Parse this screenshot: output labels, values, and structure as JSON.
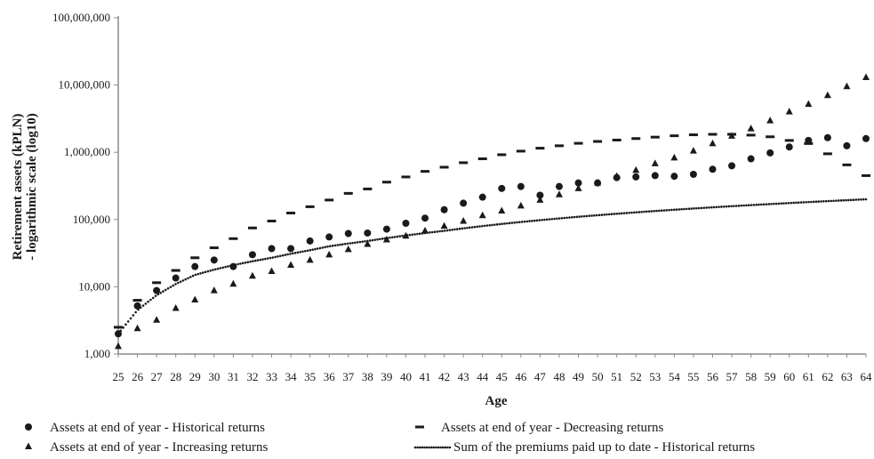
{
  "chart_data": {
    "type": "scatter",
    "xlabel": "Age",
    "ylabel": "Retirement assets (kPLN)",
    "ylabel_line2": "- logarithmic scale (log10)",
    "yscale": "log10",
    "ylim": [
      1000,
      100000000
    ],
    "y_ticks": [
      "1,000",
      "10,000",
      "100,000",
      "1,000,000",
      "10,000,000",
      "100,000,000"
    ],
    "x": [
      25,
      26,
      27,
      28,
      29,
      30,
      31,
      32,
      33,
      34,
      35,
      36,
      37,
      38,
      39,
      40,
      41,
      42,
      43,
      44,
      45,
      46,
      47,
      48,
      49,
      50,
      51,
      52,
      53,
      54,
      55,
      56,
      57,
      58,
      59,
      60,
      61,
      62,
      63,
      64
    ],
    "grid": false,
    "legend_position": "bottom",
    "series": [
      {
        "name": "Assets at end of year - Historical returns",
        "marker": "circle",
        "values": [
          2000,
          5200,
          8800,
          13500,
          20000,
          25000,
          20000,
          30000,
          37000,
          37000,
          48000,
          55000,
          62000,
          63000,
          72000,
          88000,
          105000,
          140000,
          175000,
          215000,
          290000,
          310000,
          230000,
          310000,
          350000,
          350000,
          420000,
          430000,
          450000,
          440000,
          470000,
          560000,
          630000,
          800000,
          980000,
          1200000,
          1500000,
          1650000,
          1250000,
          1600000
        ]
      },
      {
        "name": "Assets at end of year - Decreasing returns",
        "marker": "dash",
        "values": [
          2500,
          6300,
          11500,
          17500,
          27000,
          38000,
          52000,
          75000,
          95000,
          125000,
          155000,
          195000,
          245000,
          285000,
          360000,
          430000,
          520000,
          600000,
          700000,
          800000,
          920000,
          1040000,
          1150000,
          1250000,
          1360000,
          1450000,
          1520000,
          1600000,
          1680000,
          1760000,
          1820000,
          1850000,
          1850000,
          1800000,
          1700000,
          1500000,
          1350000,
          950000,
          650000,
          450000
        ]
      },
      {
        "name": "Assets at end of year - Increasing returns",
        "marker": "triangle",
        "values": [
          1300,
          2400,
          3200,
          4800,
          6400,
          8800,
          11000,
          14500,
          17000,
          21000,
          25000,
          30000,
          36000,
          43000,
          50000,
          57000,
          68000,
          80000,
          95000,
          115000,
          135000,
          160000,
          195000,
          235000,
          290000,
          350000,
          440000,
          540000,
          680000,
          830000,
          1050000,
          1350000,
          1750000,
          2250000,
          2950000,
          4000000,
          5200000,
          7000000,
          9500000,
          13000000
        ]
      },
      {
        "name": "Sum of the premiums paid up to date - Historical returns",
        "marker": "dotted-line",
        "values": [
          2000,
          4500,
          7500,
          11000,
          15000,
          18000,
          21000,
          24000,
          27000,
          31000,
          35000,
          40000,
          44000,
          48000,
          53000,
          58000,
          63000,
          68000,
          74000,
          80000,
          86000,
          92000,
          98000,
          104000,
          110000,
          116000,
          122000,
          128000,
          134000,
          140000,
          146000,
          152000,
          158000,
          164000,
          170000,
          176000,
          182000,
          188000,
          194000,
          200000
        ]
      }
    ]
  }
}
